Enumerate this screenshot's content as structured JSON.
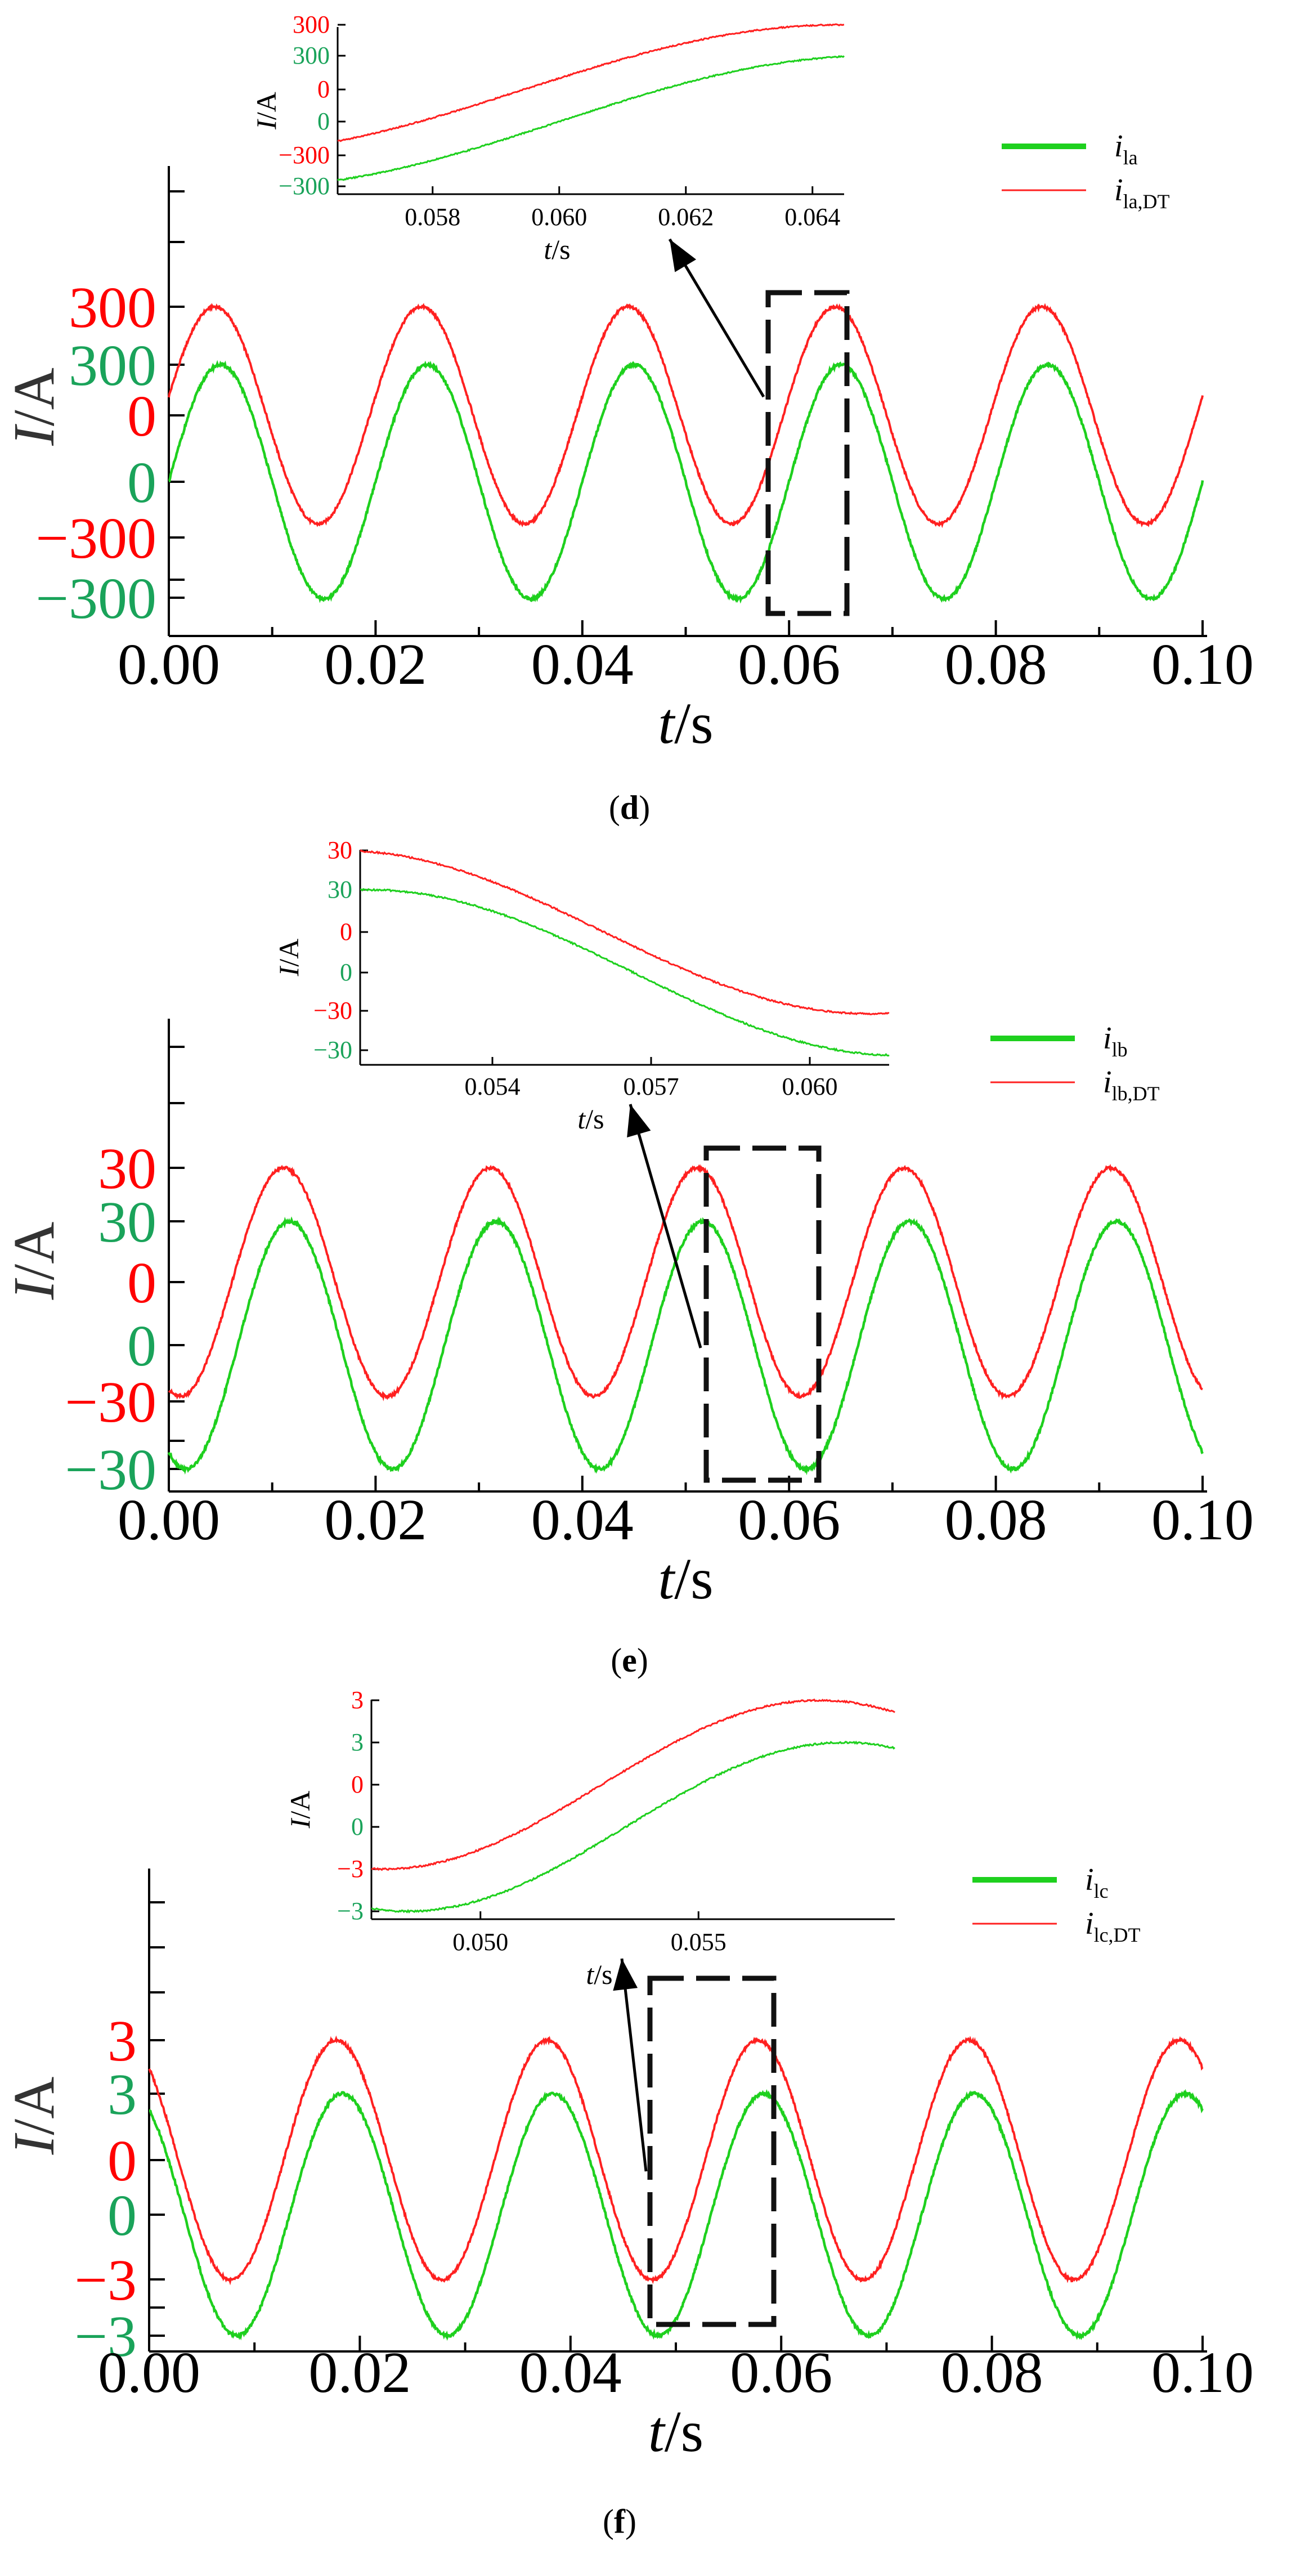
{
  "chart_data": [
    {
      "type": "line",
      "caption": "d",
      "xlabel": "t/s",
      "ylabel": "I/A",
      "xlim": [
        0,
        0.1
      ],
      "xticks": [
        "0.00",
        "0.02",
        "0.04",
        "0.06",
        "0.08",
        "0.10"
      ],
      "yticks_green": [
        "300",
        "0",
        "−300"
      ],
      "yticks_red": [
        "300",
        "0",
        "−300"
      ],
      "amplitude": 300,
      "frequency_hz": 50,
      "phase_deg_green": 0,
      "phase_deg_red": 10,
      "series": [
        {
          "name": "i_la",
          "main": "i",
          "sub": "la",
          "color": "#1ed01e"
        },
        {
          "name": "i_la,DT",
          "main": "i",
          "sub": "la,DT",
          "color": "#ff2020"
        }
      ],
      "zoom_window": [
        0.0565,
        0.0635
      ],
      "inset": {
        "xlim": [
          0.0565,
          0.0645
        ],
        "xticks": [
          "0.058",
          "0.060",
          "0.062",
          "0.064"
        ],
        "xtick_values": [
          0.058,
          0.06,
          0.062,
          0.064
        ],
        "yticks_red": [
          "300",
          "0",
          "−300"
        ],
        "yticks_green": [
          "300",
          "0",
          "−300"
        ],
        "xlabel": "t/s",
        "ylabel": "I/A"
      }
    },
    {
      "type": "line",
      "caption": "e",
      "xlabel": "t/s",
      "ylabel": "I/A",
      "xlim": [
        0,
        0.1
      ],
      "xticks": [
        "0.00",
        "0.02",
        "0.04",
        "0.06",
        "0.08",
        "0.10"
      ],
      "yticks_green": [
        "30",
        "0",
        "−30"
      ],
      "yticks_red": [
        "30",
        "0",
        "−30"
      ],
      "amplitude": 30,
      "frequency_hz": 50,
      "phase_deg_green": -120,
      "phase_deg_red": -110,
      "series": [
        {
          "name": "i_lb",
          "main": "i",
          "sub": "lb",
          "color": "#1ed01e"
        },
        {
          "name": "i_lb,DT",
          "main": "i",
          "sub": "lb,DT",
          "color": "#ff2020"
        }
      ],
      "zoom_window": [
        0.051,
        0.062
      ],
      "inset": {
        "xlim": [
          0.0515,
          0.0615
        ],
        "xticks": [
          "0.054",
          "0.057",
          "0.060"
        ],
        "xtick_values": [
          0.054,
          0.057,
          0.06
        ],
        "yticks_red": [
          "30",
          "0",
          "−30"
        ],
        "yticks_green": [
          "30",
          "0",
          "−30"
        ],
        "xlabel": "t/s",
        "ylabel": "I/A"
      }
    },
    {
      "type": "line",
      "caption": "f",
      "xlabel": "t/s",
      "ylabel": "I/A",
      "xlim": [
        0,
        0.1
      ],
      "xticks": [
        "0.00",
        "0.02",
        "0.04",
        "0.06",
        "0.08",
        "0.10"
      ],
      "yticks_green": [
        "3",
        "0",
        "−3"
      ],
      "yticks_red": [
        "3",
        "0",
        "−3"
      ],
      "amplitude": 3,
      "frequency_hz": 50,
      "phase_deg_green": 120,
      "phase_deg_red": 130,
      "series": [
        {
          "name": "i_lc",
          "main": "i",
          "sub": "lc",
          "color": "#1ed01e"
        },
        {
          "name": "i_lc,DT",
          "main": "i",
          "sub": "lc,DT",
          "color": "#ff2020"
        }
      ],
      "zoom_window": [
        0.047,
        0.059
      ],
      "inset": {
        "xlim": [
          0.0475,
          0.0595
        ],
        "xticks": [
          "0.050",
          "0.055"
        ],
        "xtick_values": [
          0.05,
          0.055
        ],
        "yticks_red": [
          "3",
          "0",
          "−3"
        ],
        "yticks_green": [
          "3",
          "0",
          "−3"
        ],
        "xlabel": "t/s",
        "ylabel": "I/A"
      }
    }
  ]
}
